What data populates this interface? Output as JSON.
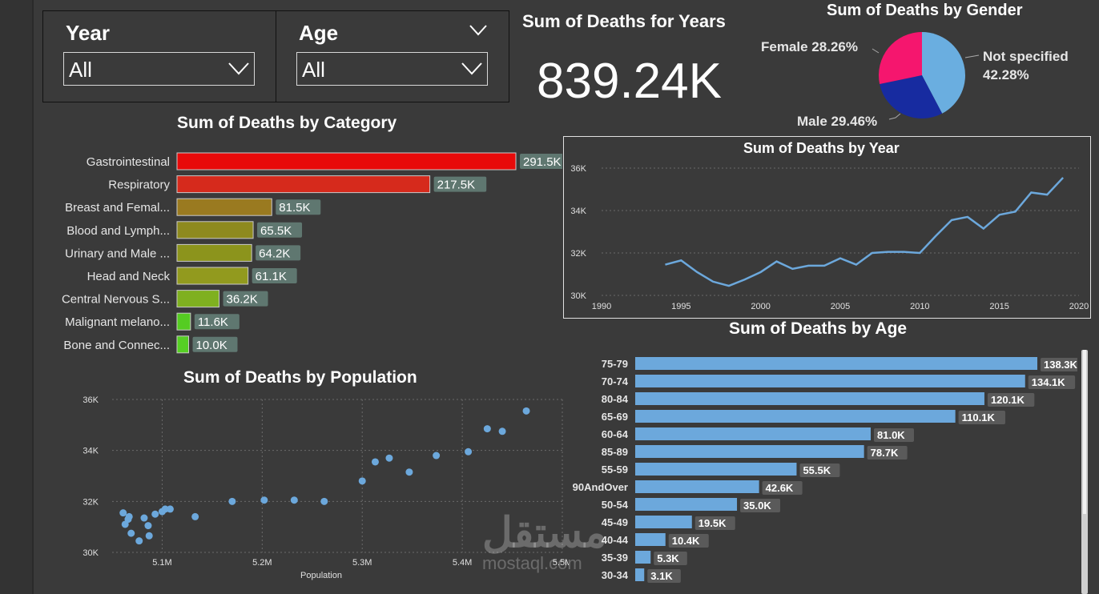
{
  "slicers": {
    "year": {
      "title": "Year",
      "value": "All"
    },
    "age": {
      "title": "Age",
      "value": "All"
    }
  },
  "kpi": {
    "title": "Sum of Deaths for Years",
    "value": "839.24K"
  },
  "watermark": {
    "arabic": "مستقل",
    "latin": "mostaql.com"
  },
  "colors": {
    "background": "#3a3a3a",
    "line": "#6ca8dc",
    "bar_age": "#6ca8dc",
    "female": "#f5166e",
    "male": "#172ba0",
    "not_specified": "#6aaee0"
  },
  "charts": {
    "gender": {
      "title": "Sum of Deaths by Gender",
      "chart_data": {
        "type": "pie",
        "title": "Sum of Deaths by Gender",
        "labels": [
          "Not specified",
          "Male",
          "Female"
        ],
        "values": [
          42.28,
          29.46,
          28.26
        ],
        "unit": "%",
        "label_texts": [
          "Not specified",
          "42.28%",
          "Male 29.46%",
          "Female 28.26%"
        ]
      }
    },
    "category": {
      "title": "Sum of Deaths by Category",
      "chart_data": {
        "type": "bar",
        "orientation": "horizontal",
        "title": "Sum of Deaths by Category",
        "categories": [
          "Gastrointestinal",
          "Respiratory",
          "Breast and Femal...",
          "Blood and Lymph...",
          "Urinary and Male ...",
          "Head and Neck",
          "Central Nervous S...",
          "Malignant melano...",
          "Bone and Connec..."
        ],
        "values": [
          291.5,
          217.5,
          81.5,
          65.5,
          64.2,
          61.1,
          36.2,
          11.6,
          10.0
        ],
        "unit": "K",
        "data_labels": [
          "291.5K",
          "217.5K",
          "81.5K",
          "65.5K",
          "64.2K",
          "61.1K",
          "36.2K",
          "11.6K",
          "10.0K"
        ],
        "colors": [
          "#e80a0a",
          "#d62a1c",
          "#9a7a20",
          "#8e8a1e",
          "#8c941c",
          "#929a1e",
          "#7fb020",
          "#55cc22",
          "#56d024"
        ]
      }
    },
    "year": {
      "title": "Sum of Deaths by Year",
      "chart_data": {
        "type": "line",
        "title": "Sum of Deaths by Year",
        "x": [
          1994,
          1995,
          1996,
          1997,
          1998,
          1999,
          2000,
          2001,
          2002,
          2003,
          2004,
          2005,
          2006,
          2007,
          2008,
          2009,
          2010,
          2011,
          2012,
          2013,
          2014,
          2015,
          2016,
          2017,
          2018,
          2019
        ],
        "y": [
          31.45,
          31.65,
          31.1,
          30.65,
          30.45,
          30.75,
          31.1,
          31.6,
          31.25,
          31.4,
          31.4,
          31.75,
          31.45,
          32.0,
          32.05,
          32.05,
          32.0,
          32.8,
          33.55,
          33.7,
          33.15,
          33.8,
          33.95,
          34.85,
          34.75,
          35.55
        ],
        "xlim": [
          1990,
          2020
        ],
        "ylim": [
          30,
          36
        ],
        "xticks": [
          "1990",
          "1995",
          "2000",
          "2005",
          "2010",
          "2015",
          "2020"
        ],
        "yticks": [
          "30K",
          "32K",
          "34K",
          "36K"
        ],
        "grid": true
      }
    },
    "age": {
      "title": "Sum of Deaths by Age",
      "chart_data": {
        "type": "bar",
        "orientation": "horizontal",
        "title": "Sum of Deaths by Age",
        "categories": [
          "75-79",
          "70-74",
          "80-84",
          "65-69",
          "60-64",
          "85-89",
          "55-59",
          "90AndOver",
          "50-54",
          "45-49",
          "40-44",
          "35-39",
          "30-34"
        ],
        "values": [
          138.3,
          134.1,
          120.1,
          110.1,
          81.0,
          78.7,
          55.5,
          42.6,
          35.0,
          19.5,
          10.4,
          5.3,
          3.1
        ],
        "unit": "K",
        "data_labels": [
          "138.3K",
          "134.1K",
          "120.1K",
          "110.1K",
          "81.0K",
          "78.7K",
          "55.5K",
          "42.6K",
          "35.0K",
          "19.5K",
          "10.4K",
          "5.3K",
          "3.1K"
        ]
      }
    },
    "population": {
      "title": "Sum of Deaths by Population",
      "chart_data": {
        "type": "scatter",
        "title": "Sum of Deaths by Population",
        "xlabel": "Population",
        "x": [
          5.063,
          5.061,
          5.066,
          5.067,
          5.069,
          5.077,
          5.082,
          5.087,
          5.086,
          5.093,
          5.1,
          5.103,
          5.108,
          5.133,
          5.17,
          5.202,
          5.232,
          5.262,
          5.3,
          5.313,
          5.327,
          5.347,
          5.374,
          5.406,
          5.425,
          5.44,
          5.464
        ],
        "y": [
          31.1,
          31.55,
          31.3,
          31.4,
          30.75,
          30.45,
          31.35,
          30.65,
          31.05,
          31.5,
          31.6,
          31.7,
          31.7,
          31.4,
          32.0,
          32.05,
          32.05,
          32.0,
          32.8,
          33.55,
          33.7,
          33.15,
          33.8,
          33.95,
          34.85,
          34.75,
          35.55
        ],
        "xlim": [
          5.05,
          5.5
        ],
        "ylim": [
          30,
          36
        ],
        "xticks": [
          "5.1M",
          "5.2M",
          "5.3M",
          "5.4M",
          "5.5M"
        ],
        "yticks": [
          "30K",
          "32K",
          "34K",
          "36K"
        ],
        "grid": true
      }
    }
  }
}
